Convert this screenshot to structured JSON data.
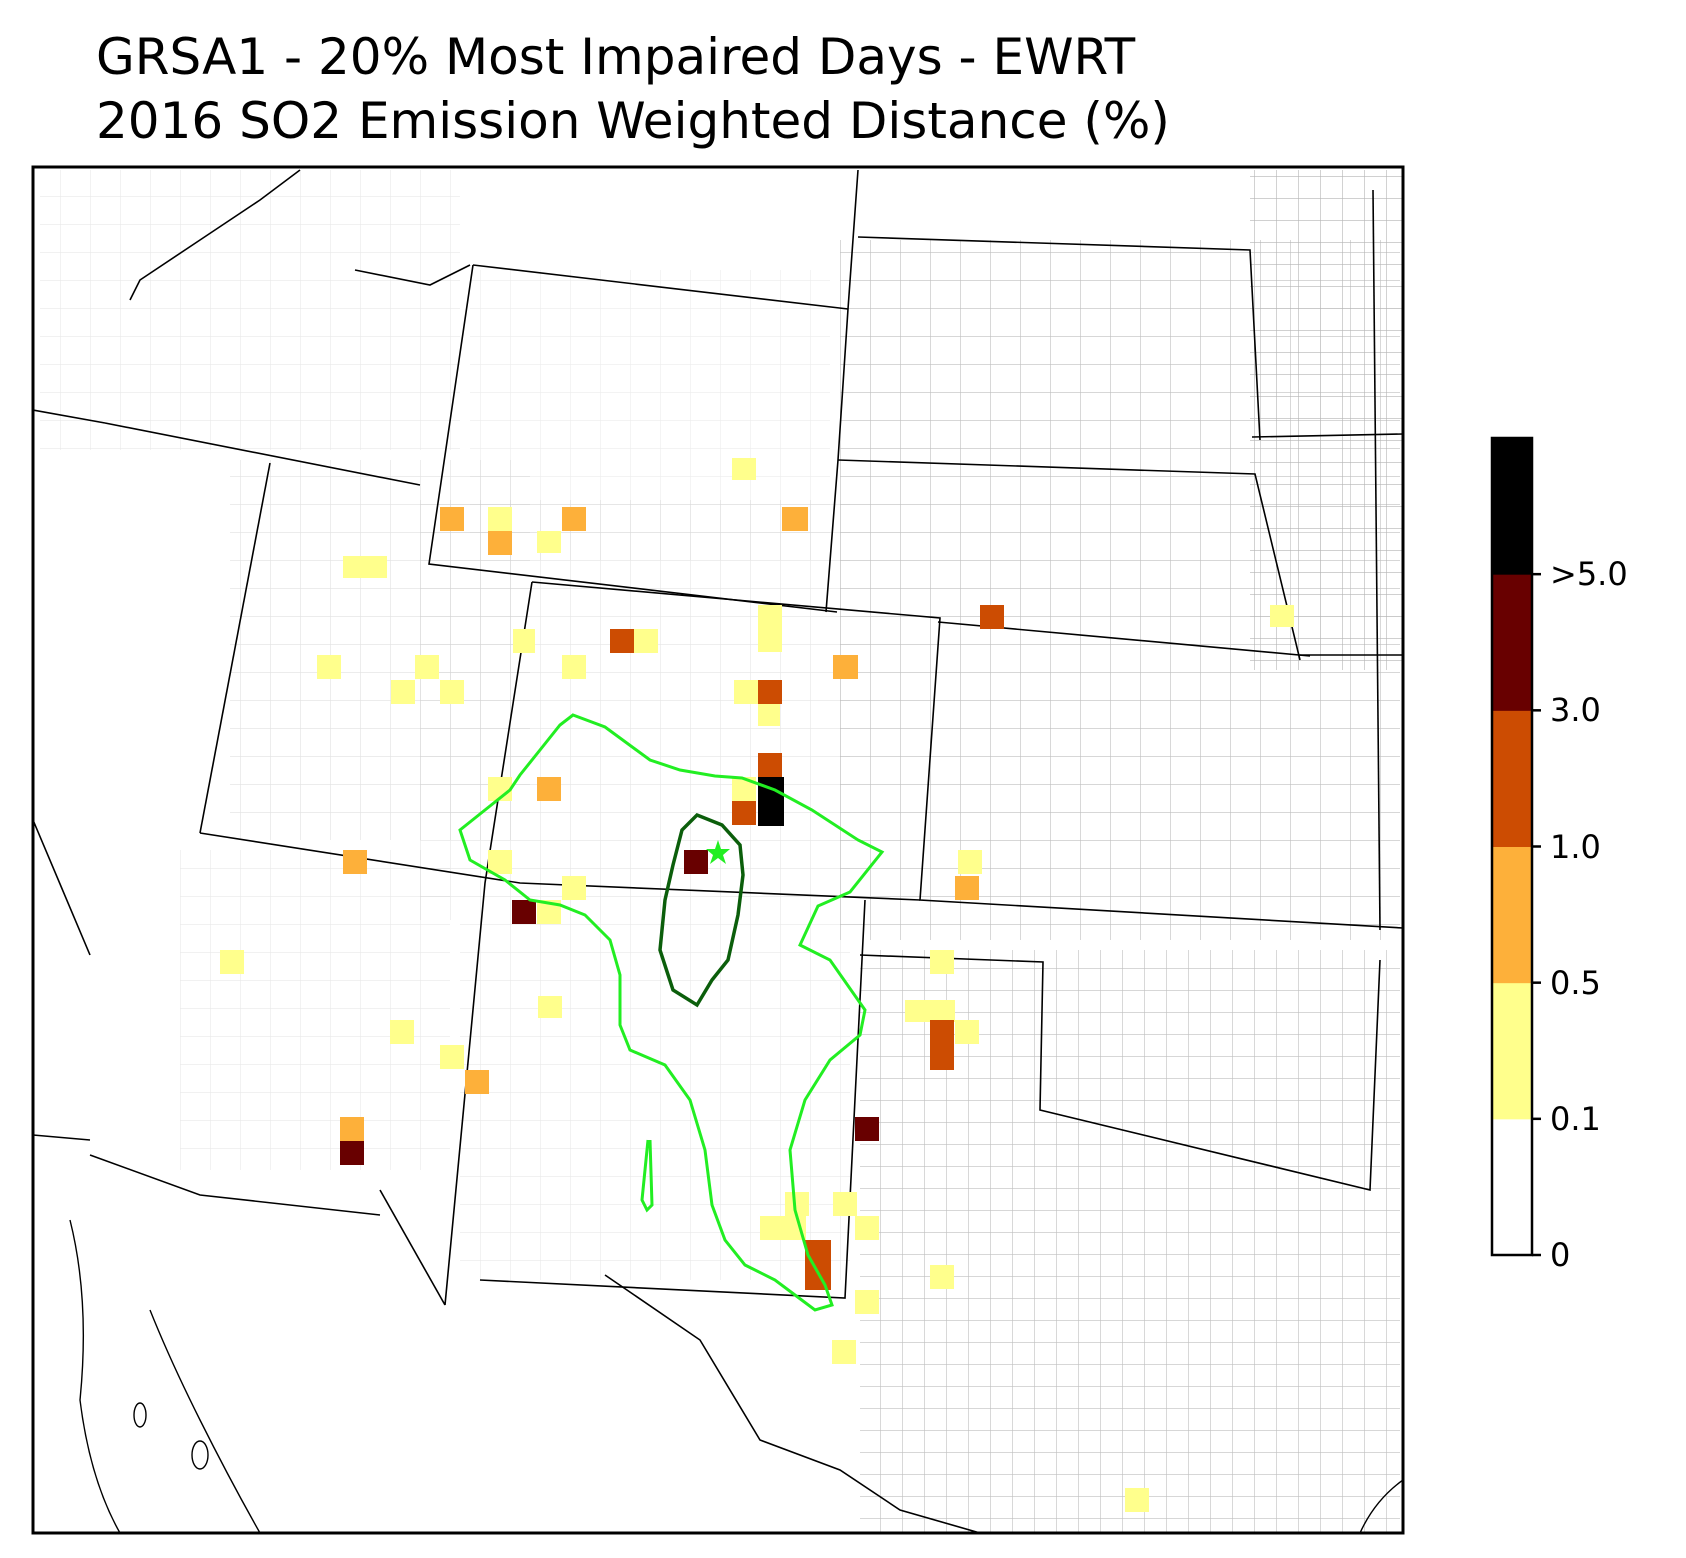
{
  "title_line1": "GRSA1 - 20% Most Impaired Days - EWRT",
  "title_line2": "2016 SO2 Emission Weighted Distance (%)",
  "legend": {
    "colors": [
      "#ffffff",
      "#ffff8c",
      "#fdb03a",
      "#cc4c02",
      "#680000",
      "#000000"
    ],
    "tick_labels": [
      "0",
      "0.1",
      "0.5",
      "1.0",
      "3.0",
      ">5.0"
    ]
  },
  "colors": {
    "outer_contour": "#22ee22",
    "inner_contour": "#0b5e0b",
    "site_marker": "#22ee22",
    "county_lines": "#aaaaaa",
    "state_lines": "#000000"
  },
  "site_marker_icon": "star-icon"
}
